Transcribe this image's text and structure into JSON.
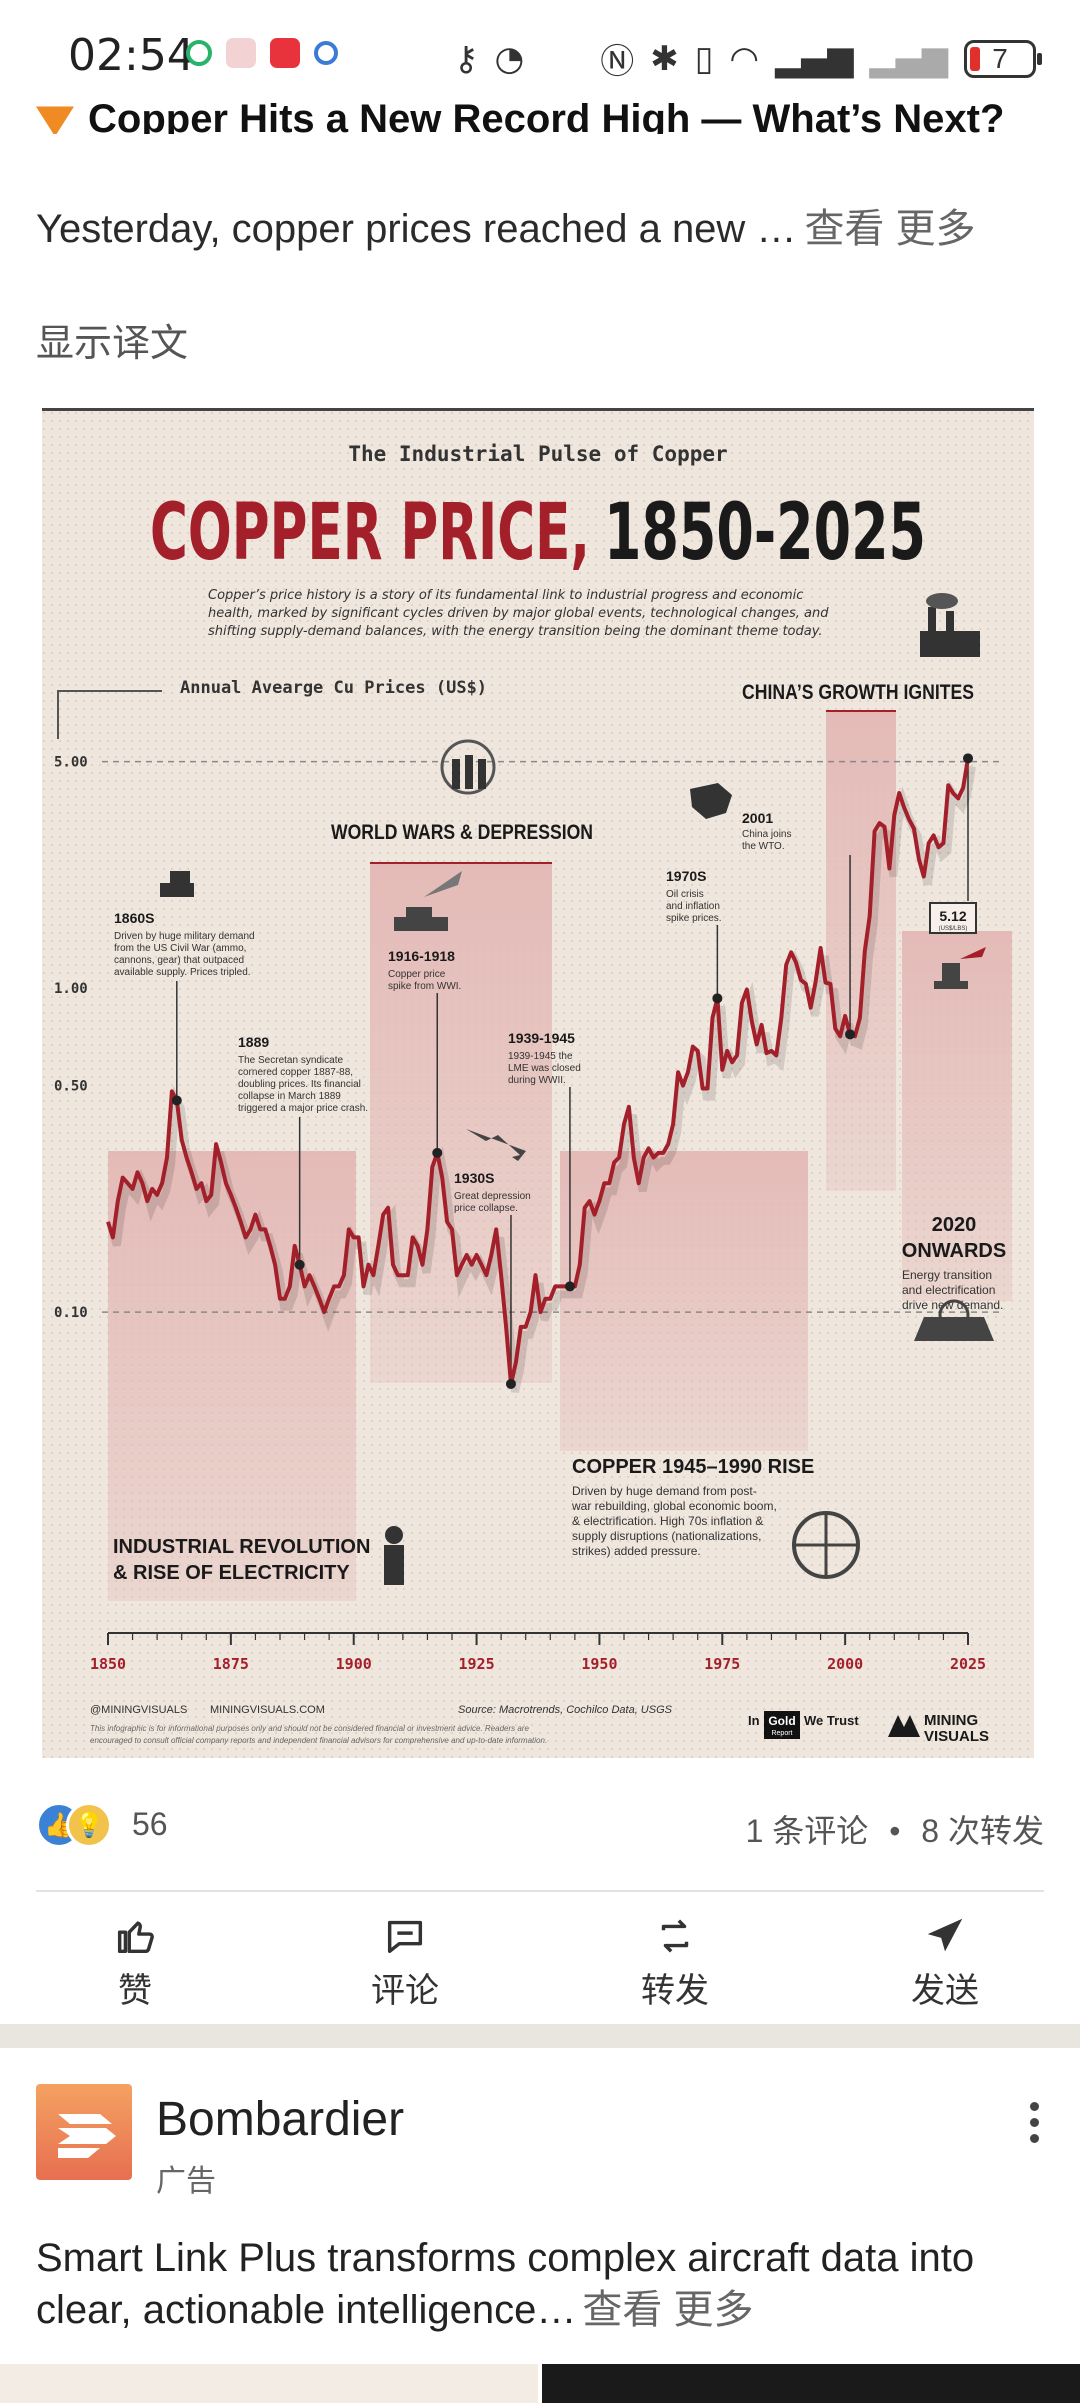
{
  "status_bar": {
    "time": "02:54",
    "battery": "7",
    "icons": [
      "sync-icon",
      "app-icon",
      "cat-icon",
      "search-icon",
      "key-icon",
      "speed-icon",
      "nfc-icon",
      "bluetooth-icon",
      "vibrate-icon",
      "wifi-icon",
      "signal-icon",
      "signal-icon-2"
    ]
  },
  "post": {
    "title": "Copper Hits a New Record High — What’s Next?",
    "body": "Yesterday, copper prices reached a new …",
    "see_more": "查看 更多",
    "translate": "显示译文"
  },
  "infographic": {
    "kicker": "The Industrial Pulse of Copper",
    "headline_a": "COPPER PRICE,",
    "headline_b": "1850-2025",
    "intro": [
      "Copper’s price history is a story of its fundamental link to industrial progress and economic",
      "health, marked by significant cycles driven by major global events, technological changes, and",
      "shifting supply-demand balances, with the energy transition being the dominant theme today."
    ],
    "axis_title": "Annual Avearge Cu Prices (US$)",
    "footer_social": "@MININGVISUALS",
    "footer_site": "MININGVISUALS.COM",
    "footer_source": "Source: Macrotrends, Cochilco Data, USGS",
    "disclaimer": [
      "This infographic is for informational purposes only and should not be considered financial or investment advice. Readers are",
      "encouraged to consult official company reports and independent financial advisors for comprehensive and up-to-date information."
    ],
    "brand_1_a": "In",
    "brand_1_b": "Gold",
    "brand_1_c": "We Trust",
    "brand_1_d": "Report",
    "brand_2_a": "MINING",
    "brand_2_b": "VISUALS",
    "value_label": "5.12",
    "value_label_unit": "(US$/LBS)",
    "eras": [
      {
        "title_1": "INDUSTRIAL REVOLUTION",
        "title_2": "& RISE OF ELECTRICITY"
      },
      {
        "title_1": "WORLD WARS & DEPRESSION"
      },
      {
        "title_1": "COPPER 1945–1990 RISE",
        "lines": [
          "Driven by huge demand from post-",
          "war rebuilding, global economic boom,",
          "& electrification. High 70s inflation &",
          "supply disruptions (nationalizations,",
          "strikes) added pressure."
        ]
      },
      {
        "title_1": "CHINA’S GROWTH IGNITES"
      },
      {
        "title_1": "2020",
        "title_2": "ONWARDS",
        "lines": [
          "Energy transition",
          "and electrification",
          "drive new demand."
        ]
      }
    ],
    "events": [
      {
        "title": "1860S",
        "lines": [
          "Driven by huge military demand",
          "from the US Civil War (ammo,",
          "cannons, gear) that outpaced",
          "available supply. Prices tripled."
        ]
      },
      {
        "title": "1889",
        "lines": [
          "The Secretan syndicate",
          "cornered copper 1887-88,",
          "doubling prices. Its financial",
          "collapse in March 1889",
          "triggered a major price crash."
        ]
      },
      {
        "title": "1916-1918",
        "lines": [
          "Copper price",
          "spike from WWI."
        ]
      },
      {
        "title": "1930S",
        "lines": [
          "Great depression",
          "price collapse."
        ]
      },
      {
        "title": "1939-1945",
        "lines": [
          "1939-1945 the",
          "LME was closed",
          "during WWII."
        ]
      },
      {
        "title": "1970S",
        "lines": [
          "Oil crisis",
          "and inflation",
          "spike prices."
        ]
      },
      {
        "title": "2001",
        "lines": [
          "China joins",
          "the WTO."
        ]
      }
    ]
  },
  "chart_data": {
    "type": "line",
    "title": "COPPER PRICE, 1850-2025",
    "subtitle": "The Industrial Pulse of Copper",
    "ylabel": "Annual Avearge Cu Prices (US$)",
    "xlabel": "",
    "y_scale": "log",
    "ylim": [
      0.04,
      6.0
    ],
    "xlim": [
      1850,
      2025
    ],
    "x_ticks": [
      "1850",
      "1875",
      "1900",
      "1925",
      "1950",
      "1975",
      "2000",
      "2025"
    ],
    "y_ticks": [
      "5.00",
      "1.00",
      "0.50",
      "0.10"
    ],
    "y_tick_values": [
      5.0,
      1.0,
      0.5,
      0.1
    ],
    "x": [
      1850,
      1851,
      1852,
      1853,
      1854,
      1855,
      1856,
      1857,
      1858,
      1859,
      1860,
      1861,
      1862,
      1863,
      1864,
      1865,
      1866,
      1867,
      1868,
      1869,
      1870,
      1871,
      1872,
      1873,
      1874,
      1875,
      1876,
      1877,
      1878,
      1879,
      1880,
      1881,
      1882,
      1883,
      1884,
      1885,
      1886,
      1887,
      1888,
      1889,
      1890,
      1891,
      1892,
      1893,
      1894,
      1895,
      1896,
      1897,
      1898,
      1899,
      1900,
      1901,
      1902,
      1903,
      1904,
      1905,
      1906,
      1907,
      1908,
      1909,
      1910,
      1911,
      1912,
      1913,
      1914,
      1915,
      1916,
      1917,
      1918,
      1919,
      1920,
      1921,
      1922,
      1923,
      1924,
      1925,
      1926,
      1927,
      1928,
      1929,
      1930,
      1931,
      1932,
      1933,
      1934,
      1935,
      1936,
      1937,
      1938,
      1939,
      1940,
      1941,
      1942,
      1943,
      1944,
      1945,
      1946,
      1947,
      1948,
      1949,
      1950,
      1951,
      1952,
      1953,
      1954,
      1955,
      1956,
      1957,
      1958,
      1959,
      1960,
      1961,
      1962,
      1963,
      1964,
      1965,
      1966,
      1967,
      1968,
      1969,
      1970,
      1971,
      1972,
      1973,
      1974,
      1975,
      1976,
      1977,
      1978,
      1979,
      1980,
      1981,
      1982,
      1983,
      1984,
      1985,
      1986,
      1987,
      1988,
      1989,
      1990,
      1991,
      1992,
      1993,
      1994,
      1995,
      1996,
      1997,
      1998,
      1999,
      2000,
      2001,
      2002,
      2003,
      2004,
      2005,
      2006,
      2007,
      2008,
      2009,
      2010,
      2011,
      2012,
      2013,
      2014,
      2015,
      2016,
      2017,
      2018,
      2019,
      2020,
      2021,
      2022,
      2023,
      2024,
      2025
    ],
    "series": [
      {
        "name": "Annual average copper price (US$/lb)",
        "values": [
          0.19,
          0.17,
          0.22,
          0.26,
          0.25,
          0.24,
          0.27,
          0.25,
          0.22,
          0.24,
          0.23,
          0.25,
          0.3,
          0.48,
          0.45,
          0.34,
          0.3,
          0.27,
          0.24,
          0.25,
          0.22,
          0.23,
          0.33,
          0.29,
          0.25,
          0.23,
          0.21,
          0.19,
          0.17,
          0.18,
          0.2,
          0.18,
          0.18,
          0.16,
          0.14,
          0.11,
          0.11,
          0.12,
          0.16,
          0.14,
          0.12,
          0.13,
          0.12,
          0.11,
          0.1,
          0.11,
          0.12,
          0.12,
          0.13,
          0.18,
          0.17,
          0.17,
          0.12,
          0.14,
          0.13,
          0.16,
          0.2,
          0.21,
          0.14,
          0.13,
          0.13,
          0.13,
          0.17,
          0.16,
          0.14,
          0.18,
          0.28,
          0.31,
          0.26,
          0.19,
          0.18,
          0.13,
          0.14,
          0.15,
          0.14,
          0.15,
          0.14,
          0.13,
          0.15,
          0.18,
          0.13,
          0.09,
          0.06,
          0.07,
          0.09,
          0.09,
          0.1,
          0.13,
          0.1,
          0.11,
          0.11,
          0.12,
          0.12,
          0.12,
          0.12,
          0.12,
          0.14,
          0.21,
          0.22,
          0.2,
          0.22,
          0.25,
          0.25,
          0.29,
          0.3,
          0.38,
          0.43,
          0.3,
          0.25,
          0.3,
          0.32,
          0.3,
          0.31,
          0.31,
          0.33,
          0.38,
          0.55,
          0.5,
          0.55,
          0.66,
          0.64,
          0.49,
          0.49,
          0.81,
          0.93,
          0.56,
          0.64,
          0.59,
          0.62,
          0.9,
          0.99,
          0.79,
          0.67,
          0.77,
          0.63,
          0.64,
          0.62,
          0.81,
          1.18,
          1.29,
          1.2,
          1.06,
          1.03,
          0.87,
          1.05,
          1.33,
          1.04,
          1.03,
          0.75,
          0.71,
          0.82,
          0.72,
          0.71,
          0.81,
          1.3,
          1.67,
          3.05,
          3.23,
          3.15,
          2.34,
          3.42,
          4.0,
          3.61,
          3.32,
          3.11,
          2.5,
          2.21,
          2.8,
          2.96,
          2.72,
          2.8,
          4.23,
          3.99,
          3.85,
          4.15,
          5.12
        ]
      }
    ],
    "annotations": [
      "1860S",
      "1889",
      "1916-1918",
      "1930S",
      "1939-1945",
      "1970S",
      "2001",
      "5.12"
    ]
  },
  "reactions": {
    "count": "56",
    "comments": "1 条评论",
    "separator": "•",
    "reposts": "8 次转发"
  },
  "actions": [
    {
      "label": "赞",
      "icon": "like-icon"
    },
    {
      "label": "评论",
      "icon": "comment-icon"
    },
    {
      "label": "转发",
      "icon": "repost-icon"
    },
    {
      "label": "发送",
      "icon": "send-icon"
    }
  ],
  "ad": {
    "name": "Bombardier",
    "sub": "广告",
    "text": "Smart Link Plus transforms complex aircraft data into clear, actionable intelligence…",
    "see_more": "查看 更多"
  },
  "colors": {
    "accent_red": "#a3202a",
    "band_pink": "#e8c4c2",
    "paper": "#efe6de",
    "brand_orange": "#e76f51"
  }
}
